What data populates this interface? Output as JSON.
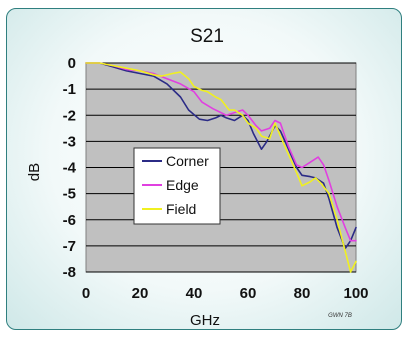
{
  "chart_data": {
    "type": "line",
    "title": "S21",
    "xlabel": "GHz",
    "ylabel": "dB",
    "xlim": [
      0,
      100
    ],
    "ylim": [
      -8,
      0
    ],
    "xticks": [
      0,
      20,
      40,
      60,
      80,
      100
    ],
    "yticks": [
      0,
      -1,
      -2,
      -3,
      -4,
      -5,
      -6,
      -7,
      -8
    ],
    "grid": "horizontal",
    "legend_position": "center-left",
    "watermark": "GWN 7B",
    "colors": {
      "plot_bg": "#c0c0c0",
      "Corner": "#2b2b86",
      "Edge": "#e040e0",
      "Field": "#f0f020"
    },
    "series": [
      {
        "name": "Corner",
        "x": [
          0,
          5,
          10,
          15,
          20,
          25,
          30,
          35,
          38,
          42,
          45,
          48,
          50,
          52,
          55,
          58,
          60,
          62,
          65,
          67,
          70,
          72,
          75,
          78,
          80,
          83,
          85,
          88,
          90,
          93,
          96,
          98,
          100
        ],
        "y": [
          0,
          0,
          -0.15,
          -0.3,
          -0.4,
          -0.5,
          -0.8,
          -1.3,
          -1.8,
          -2.15,
          -2.2,
          -2.1,
          -2.0,
          -2.1,
          -2.2,
          -2.0,
          -2.2,
          -2.7,
          -3.3,
          -3.0,
          -2.4,
          -2.6,
          -3.3,
          -4.0,
          -4.3,
          -4.35,
          -4.4,
          -4.6,
          -5.2,
          -6.3,
          -7.1,
          -6.8,
          -6.3
        ]
      },
      {
        "name": "Edge",
        "x": [
          0,
          5,
          10,
          15,
          20,
          25,
          30,
          35,
          40,
          43,
          47,
          50,
          52,
          55,
          58,
          60,
          63,
          65,
          68,
          70,
          72,
          75,
          78,
          80,
          83,
          86,
          88,
          90,
          93,
          96,
          98,
          100
        ],
        "y": [
          0,
          0,
          -0.1,
          -0.25,
          -0.3,
          -0.4,
          -0.6,
          -0.8,
          -1.1,
          -1.5,
          -1.75,
          -1.9,
          -2.0,
          -1.9,
          -1.8,
          -2.0,
          -2.4,
          -2.6,
          -2.5,
          -2.2,
          -2.3,
          -3.2,
          -3.9,
          -4.0,
          -3.8,
          -3.6,
          -3.9,
          -4.5,
          -5.5,
          -6.3,
          -6.8,
          -6.8
        ]
      },
      {
        "name": "Field",
        "x": [
          0,
          5,
          10,
          15,
          20,
          25,
          28,
          32,
          35,
          38,
          40,
          43,
          45,
          48,
          50,
          53,
          55,
          58,
          60,
          63,
          65,
          68,
          70,
          72,
          75,
          78,
          80,
          83,
          85,
          87,
          90,
          93,
          96,
          98,
          100
        ],
        "y": [
          0,
          0,
          -0.1,
          -0.2,
          -0.3,
          -0.45,
          -0.5,
          -0.4,
          -0.35,
          -0.6,
          -0.9,
          -1.05,
          -1.1,
          -1.3,
          -1.4,
          -1.8,
          -1.8,
          -2.0,
          -2.3,
          -2.5,
          -2.8,
          -2.9,
          -2.3,
          -2.8,
          -3.5,
          -4.2,
          -4.7,
          -4.55,
          -4.4,
          -4.6,
          -5.0,
          -6.0,
          -7.2,
          -8.0,
          -7.6
        ]
      }
    ]
  }
}
